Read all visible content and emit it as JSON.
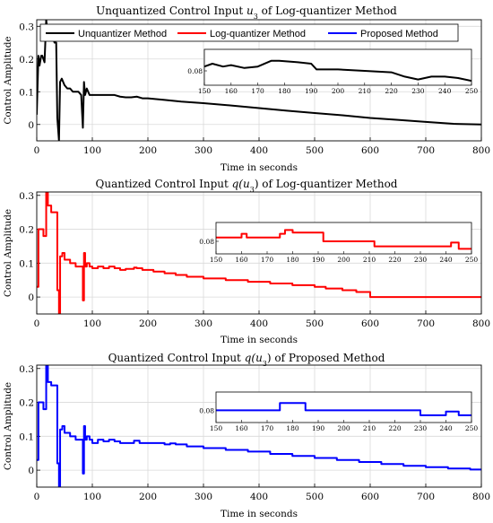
{
  "colors": {
    "unquantized": "#000000",
    "log_quantizer": "#ff0000",
    "proposed": "#0000ff",
    "axis": "#000000",
    "grid": "#d9d9d9",
    "background": "#ffffff"
  },
  "chart_data": [
    {
      "type": "line",
      "title": "Unquantized Control Input u3 of Log-quantizer Method",
      "title_main": "Unquantized Control Input ",
      "title_var": "u",
      "title_sub": "3",
      "title_tail": " of Log-quantizer Method",
      "xlabel": "Time in seconds",
      "ylabel": "Control Amplitude",
      "xlim": [
        0,
        800
      ],
      "ylim": [
        -0.05,
        0.32
      ],
      "xticks": [
        "0",
        "100",
        "200",
        "300",
        "400",
        "500",
        "600",
        "700",
        "800"
      ],
      "yticks": [
        "0",
        "0.1",
        "0.2",
        "0.3"
      ],
      "grid": true,
      "legend": [
        "Unquantizer Method",
        "Log-quantizer Method",
        "Proposed Method"
      ],
      "legend_placement": "top",
      "series": [
        {
          "name": "Unquantizer Method",
          "color": "#000000",
          "x": [
            0,
            3,
            5,
            8,
            10,
            14,
            17,
            20,
            22,
            25,
            28,
            32,
            35,
            37,
            40,
            42,
            45,
            50,
            55,
            60,
            65,
            70,
            75,
            80,
            83,
            85,
            87,
            90,
            95,
            100,
            110,
            120,
            130,
            140,
            150,
            160,
            170,
            180,
            190,
            200,
            230,
            260,
            300,
            350,
            400,
            450,
            500,
            550,
            600,
            650,
            700,
            750,
            800
          ],
          "y": [
            0.03,
            0.21,
            0.18,
            0.21,
            0.21,
            0.19,
            0.32,
            0.27,
            0.29,
            0.27,
            0.27,
            0.25,
            0.25,
            0.02,
            -0.05,
            0.13,
            0.14,
            0.12,
            0.11,
            0.11,
            0.1,
            0.1,
            0.1,
            0.09,
            -0.01,
            0.13,
            0.09,
            0.11,
            0.09,
            0.09,
            0.09,
            0.09,
            0.09,
            0.09,
            0.085,
            0.083,
            0.083,
            0.085,
            0.08,
            0.08,
            0.075,
            0.07,
            0.065,
            0.058,
            0.05,
            0.042,
            0.035,
            0.028,
            0.02,
            0.014,
            0.008,
            0.002,
            0.0
          ]
        }
      ],
      "inset": {
        "xlim": [
          150,
          250
        ],
        "xticks": [
          "150",
          "160",
          "170",
          "180",
          "190",
          "200",
          "210",
          "220",
          "230",
          "240",
          "250"
        ],
        "yticks": [
          "0.08"
        ],
        "x": [
          150,
          153,
          157,
          160,
          165,
          170,
          175,
          178,
          185,
          190,
          192,
          200,
          210,
          220,
          225,
          230,
          235,
          240,
          245,
          250
        ],
        "y": [
          0.083,
          0.085,
          0.083,
          0.084,
          0.082,
          0.083,
          0.087,
          0.087,
          0.086,
          0.085,
          0.081,
          0.081,
          0.08,
          0.079,
          0.076,
          0.074,
          0.076,
          0.076,
          0.075,
          0.073
        ]
      }
    },
    {
      "type": "line",
      "title": "Quantized Control Input q(u3) of Log-quantizer Method",
      "title_main": "Quantized Control Input ",
      "title_var": "q(u",
      "title_sub": "3",
      "title_tail": ") of Log-quantizer Method",
      "xlabel": "Time in seconds",
      "ylabel": "Control Amplitude",
      "xlim": [
        0,
        800
      ],
      "ylim": [
        -0.05,
        0.31
      ],
      "xticks": [
        "0",
        "100",
        "200",
        "300",
        "400",
        "500",
        "600",
        "700",
        "800"
      ],
      "yticks": [
        "0",
        "0.1",
        "0.2",
        "0.3"
      ],
      "grid": true,
      "series": [
        {
          "name": "Log-quantizer Method",
          "color": "#ff0000",
          "step": true,
          "x": [
            0,
            3,
            5,
            8,
            12,
            17,
            20,
            22,
            26,
            30,
            35,
            37,
            40,
            42,
            46,
            50,
            55,
            60,
            65,
            70,
            75,
            80,
            83,
            85,
            87,
            90,
            95,
            100,
            110,
            120,
            130,
            140,
            150,
            160,
            175,
            180,
            190,
            210,
            230,
            250,
            270,
            300,
            340,
            380,
            420,
            460,
            500,
            520,
            550,
            575,
            600,
            800
          ],
          "y": [
            0.03,
            0.2,
            0.2,
            0.2,
            0.18,
            0.31,
            0.27,
            0.27,
            0.25,
            0.25,
            0.25,
            0.02,
            -0.05,
            0.12,
            0.13,
            0.11,
            0.11,
            0.1,
            0.1,
            0.09,
            0.09,
            0.09,
            -0.01,
            0.13,
            0.09,
            0.1,
            0.09,
            0.085,
            0.09,
            0.085,
            0.09,
            0.085,
            0.08,
            0.083,
            0.087,
            0.085,
            0.08,
            0.075,
            0.07,
            0.065,
            0.06,
            0.055,
            0.05,
            0.045,
            0.04,
            0.035,
            0.03,
            0.025,
            0.02,
            0.015,
            0.0,
            0.0
          ]
        }
      ],
      "inset": {
        "xlim": [
          150,
          250
        ],
        "xticks": [
          "150",
          "160",
          "170",
          "180",
          "190",
          "200",
          "210",
          "220",
          "230",
          "240",
          "250"
        ],
        "yticks": [
          "0.08"
        ],
        "step": true,
        "x": [
          150,
          160,
          162,
          175,
          177,
          180,
          190,
          192,
          210,
          212,
          230,
          240,
          242,
          245,
          250
        ],
        "y": [
          0.083,
          0.086,
          0.083,
          0.086,
          0.089,
          0.087,
          0.087,
          0.08,
          0.08,
          0.076,
          0.076,
          0.076,
          0.079,
          0.074,
          0.074
        ]
      }
    },
    {
      "type": "line",
      "title": "Quantized Control Input q(u3) of Proposed Method",
      "title_main": "Quantized Control Input ",
      "title_var": "q(u",
      "title_sub": "3",
      "title_tail": ") of Proposed Method",
      "xlabel": "Time in seconds",
      "ylabel": "Control Amplitude",
      "xlim": [
        0,
        800
      ],
      "ylim": [
        -0.05,
        0.31
      ],
      "xticks": [
        "0",
        "100",
        "200",
        "300",
        "400",
        "500",
        "600",
        "700",
        "800"
      ],
      "yticks": [
        "0",
        "0.1",
        "0.2",
        "0.3"
      ],
      "grid": true,
      "series": [
        {
          "name": "Proposed Method",
          "color": "#0000ff",
          "step": true,
          "x": [
            0,
            3,
            5,
            8,
            12,
            17,
            20,
            22,
            26,
            30,
            35,
            37,
            40,
            42,
            46,
            50,
            55,
            60,
            65,
            70,
            75,
            80,
            83,
            85,
            87,
            90,
            95,
            100,
            110,
            120,
            130,
            140,
            150,
            175,
            185,
            230,
            240,
            250,
            270,
            300,
            340,
            380,
            420,
            460,
            500,
            540,
            580,
            620,
            660,
            700,
            740,
            780,
            800
          ],
          "y": [
            0.03,
            0.2,
            0.2,
            0.2,
            0.18,
            0.31,
            0.26,
            0.26,
            0.25,
            0.25,
            0.25,
            0.02,
            -0.05,
            0.12,
            0.13,
            0.11,
            0.11,
            0.1,
            0.1,
            0.09,
            0.09,
            0.09,
            -0.01,
            0.13,
            0.09,
            0.1,
            0.09,
            0.08,
            0.09,
            0.085,
            0.09,
            0.085,
            0.08,
            0.087,
            0.08,
            0.076,
            0.079,
            0.076,
            0.07,
            0.065,
            0.06,
            0.055,
            0.048,
            0.042,
            0.036,
            0.03,
            0.024,
            0.018,
            0.013,
            0.009,
            0.005,
            0.002,
            0.0
          ]
        }
      ],
      "inset": {
        "xlim": [
          150,
          250
        ],
        "xticks": [
          "150",
          "160",
          "170",
          "180",
          "190",
          "200",
          "210",
          "220",
          "230",
          "240",
          "250"
        ],
        "yticks": [
          "0.08"
        ],
        "step": true,
        "x": [
          150,
          175,
          185,
          230,
          240,
          245,
          250
        ],
        "y": [
          0.08,
          0.086,
          0.08,
          0.076,
          0.079,
          0.076,
          0.076
        ]
      }
    }
  ]
}
